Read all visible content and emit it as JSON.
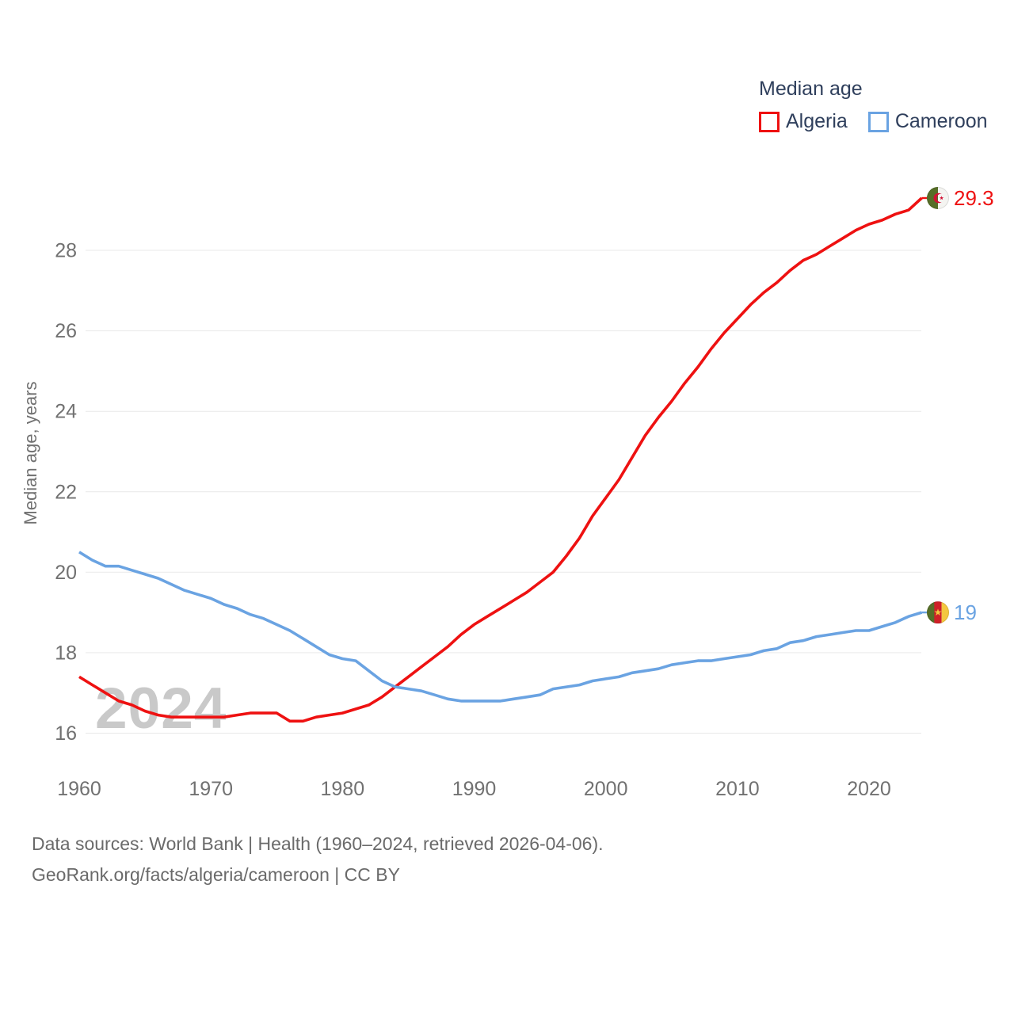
{
  "legend": {
    "title": "Median age",
    "items": [
      {
        "label": "Algeria",
        "color": "#ee1111"
      },
      {
        "label": "Cameroon",
        "color": "#6aa3e2"
      }
    ]
  },
  "chart_data": {
    "type": "line",
    "title": "Median age",
    "ylabel": "Median age, years",
    "watermark": "2024",
    "grid": "horizontal",
    "legend_position": "top-right",
    "ylim": [
      15.6,
      29.9
    ],
    "yticks": [
      16,
      18,
      20,
      22,
      24,
      26,
      28
    ],
    "xticks": [
      1960,
      1970,
      1980,
      1990,
      2000,
      2010,
      2020
    ],
    "x": [
      1960,
      1961,
      1962,
      1963,
      1964,
      1965,
      1966,
      1967,
      1968,
      1969,
      1970,
      1971,
      1972,
      1973,
      1974,
      1975,
      1976,
      1977,
      1978,
      1979,
      1980,
      1981,
      1982,
      1983,
      1984,
      1985,
      1986,
      1987,
      1988,
      1989,
      1990,
      1991,
      1992,
      1993,
      1994,
      1995,
      1996,
      1997,
      1998,
      1999,
      2000,
      2001,
      2002,
      2003,
      2004,
      2005,
      2006,
      2007,
      2008,
      2009,
      2010,
      2011,
      2012,
      2013,
      2014,
      2015,
      2016,
      2017,
      2018,
      2019,
      2020,
      2021,
      2022,
      2023,
      2024
    ],
    "series": [
      {
        "name": "Algeria",
        "color": "#ee1111",
        "end_label": "29.3",
        "flag": "algeria",
        "values": [
          17.4,
          17.2,
          17.0,
          16.8,
          16.7,
          16.55,
          16.45,
          16.4,
          16.4,
          16.4,
          16.4,
          16.4,
          16.45,
          16.5,
          16.5,
          16.5,
          16.3,
          16.3,
          16.4,
          16.45,
          16.5,
          16.6,
          16.7,
          16.9,
          17.15,
          17.4,
          17.65,
          17.9,
          18.15,
          18.45,
          18.7,
          18.9,
          19.1,
          19.3,
          19.5,
          19.75,
          20.0,
          20.4,
          20.85,
          21.4,
          21.85,
          22.3,
          22.85,
          23.4,
          23.85,
          24.25,
          24.7,
          25.1,
          25.55,
          25.95,
          26.3,
          26.65,
          26.95,
          27.2,
          27.5,
          27.75,
          27.9,
          28.1,
          28.3,
          28.5,
          28.65,
          28.75,
          28.9,
          29.0,
          29.3
        ]
      },
      {
        "name": "Cameroon",
        "color": "#6aa3e2",
        "end_label": "19",
        "flag": "cameroon",
        "values": [
          20.5,
          20.3,
          20.15,
          20.15,
          20.05,
          19.95,
          19.85,
          19.7,
          19.55,
          19.45,
          19.35,
          19.2,
          19.1,
          18.95,
          18.85,
          18.7,
          18.55,
          18.35,
          18.15,
          17.95,
          17.85,
          17.8,
          17.55,
          17.3,
          17.15,
          17.1,
          17.05,
          16.95,
          16.85,
          16.8,
          16.8,
          16.8,
          16.8,
          16.85,
          16.9,
          16.95,
          17.1,
          17.15,
          17.2,
          17.3,
          17.35,
          17.4,
          17.5,
          17.55,
          17.6,
          17.7,
          17.75,
          17.8,
          17.8,
          17.85,
          17.9,
          17.95,
          18.05,
          18.1,
          18.25,
          18.3,
          18.4,
          18.45,
          18.5,
          18.55,
          18.55,
          18.65,
          18.75,
          18.9,
          19.0
        ]
      }
    ],
    "flag_colors": {
      "algeria": {
        "green": "#566e28",
        "white": "#f4f4f1",
        "emblem_red": "#d21034"
      },
      "cameroon": {
        "green": "#566e28",
        "red": "#cf2027",
        "yellow": "#f3c73f"
      }
    }
  },
  "axis_style": {
    "tick_color": "#717171",
    "grid_color": "#e9e9e9",
    "watermark_color": "#c9c9c9"
  },
  "footer": {
    "line1": "Data sources: World Bank | Health (1960–2024, retrieved 2026-04-06).",
    "line2": "GeoRank.org/facts/algeria/cameroon | CC BY"
  }
}
